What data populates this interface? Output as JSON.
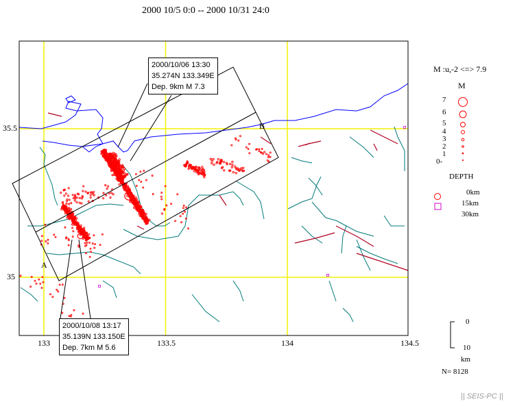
{
  "title": "2000 10/5 0:0 -- 2000 10/31 24:0",
  "axes": {
    "lat_ticks": [
      {
        "label": "35.5",
        "value": 35.5
      },
      {
        "label": "35",
        "value": 35.0
      }
    ],
    "lon_ticks": [
      {
        "label": "133",
        "value": 133.0
      },
      {
        "label": "133.5",
        "value": 133.5
      },
      {
        "label": "134",
        "value": 134.0
      },
      {
        "label": "134.5",
        "value": 134.5
      }
    ],
    "lon_range": [
      132.9,
      134.5
    ],
    "lat_range": [
      34.8,
      35.7
    ]
  },
  "callouts": [
    {
      "lines": [
        "2000/10/06 13:30",
        "35.274N   133.349E",
        "Dep. 9km    M 7.3"
      ],
      "lat": 35.274,
      "lon": 133.349
    },
    {
      "lines": [
        "2000/10/08 13:17",
        "35.139N   133.150E",
        "Dep. 7km    M 5.6"
      ],
      "lat": 35.139,
      "lon": 133.15
    }
  ],
  "profile": {
    "a_label": "A",
    "b_label": "B"
  },
  "legend": {
    "mag_range": "M :u,-2 <=> 7.9",
    "mag_title": "M",
    "mag_levels": [
      "7",
      "6",
      "5",
      "4",
      "3",
      "2",
      "1",
      "0-"
    ],
    "depth_title": "DEPTH",
    "depth_levels": [
      "0km",
      "15km",
      "30km"
    ],
    "scale_top": "0",
    "scale_bottom": "10",
    "scale_unit": "km",
    "count": "N= 8128"
  },
  "colors": {
    "grid": "#f2f200",
    "events": "#ff0000",
    "coast": "#0000ff",
    "rivers": "#007878",
    "faults": "#b00020",
    "depth_30km": "#cc00cc"
  },
  "footer": "|| SEIS-PC ||"
}
